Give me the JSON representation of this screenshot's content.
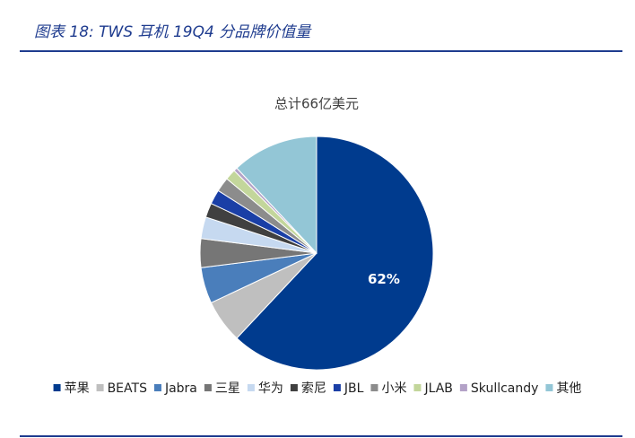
{
  "chart_data": {
    "type": "pie",
    "title": "图表 18:  TWS 耳机 19Q4 分品牌价值量",
    "subtitle": "总计66亿美元",
    "categories": [
      "苹果",
      "BEATS",
      "Jabra",
      "三星",
      "华为",
      "索尼",
      "JBL",
      "小米",
      "JLAB",
      "Skullcandy",
      "其他"
    ],
    "values": [
      62,
      6,
      5,
      4,
      3,
      2,
      2,
      2,
      1.5,
      0.5,
      12
    ],
    "value_labels": [
      "62%",
      null,
      null,
      null,
      null,
      null,
      null,
      null,
      null,
      null,
      null
    ],
    "colors": [
      "#003b8e",
      "#bfbfbf",
      "#4a7ebb",
      "#767676",
      "#c6d9f0",
      "#404040",
      "#1a3fa6",
      "#8c8c8c",
      "#c3d69b",
      "#b3a2c7",
      "#93c6d6"
    ],
    "legend": "bottom"
  }
}
